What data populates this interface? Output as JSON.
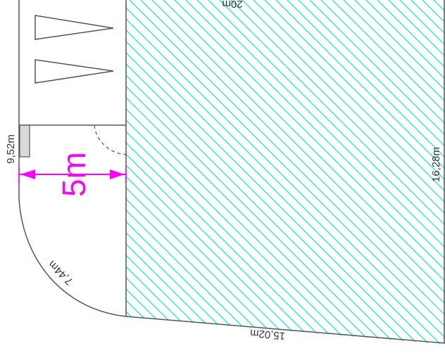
{
  "labels": {
    "top_edge": "20m",
    "left_edge": "9,52m",
    "right_edge": "16,28m",
    "curve_edge": "7,44m",
    "bottom_edge": "15,02m",
    "width_dimension": "5m"
  },
  "colors": {
    "hatch": "#12e3e3",
    "outline": "#555555",
    "dimension": "#ff00ff",
    "marker_fill": "#d9d9d9"
  }
}
